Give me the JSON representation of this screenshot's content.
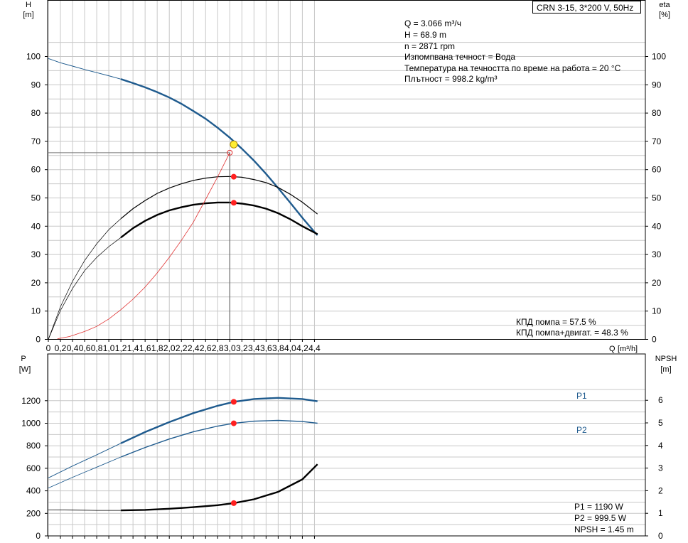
{
  "title_box": "CRN 3-15, 3*200 V, 50Hz",
  "top_chart": {
    "left_axis": {
      "symbol": "H",
      "unit": "[m]"
    },
    "right_axis": {
      "symbol": "eta",
      "unit": "[%]"
    },
    "x_axis": {
      "symbol": "Q",
      "unit": "[m³/h]"
    },
    "info_lines": [
      "Q = 3.066 m³/ч",
      "H = 68.9 m",
      "n = 2871 rpm",
      "Изпомпвана течност = Вода",
      "Температура на течността по време на работа = 20 °C",
      "Плътност = 998.2 kg/m³"
    ],
    "eff_lines": [
      "КПД помпа = 57.5 %",
      "КПД помпа+двигат. = 48.3 %"
    ]
  },
  "bottom_chart": {
    "left_axis": {
      "symbol": "P",
      "unit": "[W]"
    },
    "right_axis": {
      "symbol": "NPSH",
      "unit": "[m]"
    },
    "series_labels": {
      "p1": "P1",
      "p2": "P2"
    },
    "info_lines": [
      "P1 = 1190 W",
      "P2 = 999.5 W",
      "NPSH = 1.45 m"
    ]
  },
  "chart_data": [
    {
      "type": "line",
      "title": "CRN 3-15, 3*200 V, 50Hz",
      "xlabel": "Q [m³/h]",
      "ylabel": "H [m]",
      "ylabel_right": "eta [%]",
      "xlim": [
        0,
        4.6
      ],
      "ylim": [
        0,
        110
      ],
      "ylim_right": [
        0,
        110
      ],
      "x_ticks": [
        0,
        0.2,
        0.4,
        0.6,
        0.8,
        1.0,
        1.2,
        1.4,
        1.6,
        1.8,
        2.0,
        2.2,
        2.4,
        2.6,
        2.8,
        3.0,
        3.2,
        3.4,
        3.6,
        3.8,
        4.0,
        4.2,
        4.4
      ],
      "y_ticks": [
        0,
        10,
        20,
        30,
        40,
        50,
        60,
        70,
        80,
        90,
        100
      ],
      "grid": true,
      "operating_point": {
        "q": 3.066,
        "h": 68.9,
        "eta_pump": 57.5,
        "eta_total": 48.3
      },
      "system_curve_point": {
        "q": 3.0,
        "h": 66
      },
      "series": [
        {
          "key": "head",
          "color": "#1f5b8e",
          "x": [
            0,
            0.2,
            0.4,
            0.6,
            0.8,
            1.0,
            1.2,
            1.4,
            1.6,
            1.8,
            2.0,
            2.2,
            2.4,
            2.6,
            2.8,
            3.0,
            3.2,
            3.4,
            3.6,
            3.8,
            4.0,
            4.2,
            4.4,
            4.45
          ],
          "y": [
            99.3,
            97.8,
            96.6,
            95.4,
            94.3,
            93.2,
            92.0,
            90.6,
            89.1,
            87.4,
            85.5,
            83.3,
            80.7,
            78.0,
            74.8,
            71.3,
            67.4,
            63.2,
            58.5,
            53.5,
            48.3,
            43.0,
            38.0,
            36.8
          ]
        },
        {
          "key": "eta_pump",
          "color": "#000000",
          "x": [
            0,
            0.2,
            0.4,
            0.6,
            0.8,
            1.0,
            1.2,
            1.4,
            1.6,
            1.8,
            2.0,
            2.2,
            2.4,
            2.6,
            2.8,
            3.0,
            3.2,
            3.4,
            3.6,
            3.8,
            4.0,
            4.2,
            4.45
          ],
          "y": [
            0,
            11.5,
            20.5,
            27.9,
            33.8,
            38.8,
            42.7,
            46.2,
            49.1,
            51.6,
            53.5,
            55.0,
            56.2,
            57.0,
            57.5,
            57.6,
            57.3,
            56.5,
            55.4,
            53.7,
            51.3,
            48.5,
            44.3
          ]
        },
        {
          "key": "eta_total",
          "color": "#000000",
          "x": [
            0,
            0.2,
            0.4,
            0.6,
            0.8,
            1.0,
            1.2,
            1.4,
            1.6,
            1.8,
            2.0,
            2.2,
            2.4,
            2.6,
            2.8,
            3.0,
            3.2,
            3.4,
            3.6,
            3.8,
            4.0,
            4.2,
            4.45
          ],
          "y": [
            0,
            10.2,
            18.0,
            24.3,
            29.0,
            32.8,
            36.0,
            39.3,
            41.9,
            44.0,
            45.6,
            46.7,
            47.6,
            48.1,
            48.4,
            48.4,
            48.0,
            47.3,
            46.2,
            44.6,
            42.5,
            40.0,
            37.2
          ]
        },
        {
          "key": "system",
          "color": "#e03030",
          "x": [
            0.15,
            0.35,
            0.6,
            0.8,
            1.0,
            1.2,
            1.4,
            1.6,
            1.8,
            2.0,
            2.2,
            2.4,
            2.6,
            2.8,
            3.0
          ],
          "y": [
            0.2,
            1.0,
            2.8,
            4.6,
            7.2,
            10.5,
            14.2,
            18.5,
            23.5,
            29.0,
            35.0,
            41.5,
            49.5,
            57.5,
            66.0
          ]
        }
      ]
    },
    {
      "type": "line",
      "xlabel": "Q [m³/h]",
      "ylabel": "P [W]",
      "ylabel_right": "NPSH [m]",
      "xlim": [
        0,
        4.6
      ],
      "ylim": [
        0,
        1400
      ],
      "ylim_right": [
        0,
        7
      ],
      "y_ticks": [
        0,
        200,
        400,
        600,
        800,
        1000,
        1200
      ],
      "y_ticks_right": [
        0,
        1,
        2,
        3,
        4,
        5,
        6
      ],
      "grid": true,
      "operating_point": {
        "q": 3.066,
        "p1": 1190,
        "p2": 999.5,
        "npsh": 1.45
      },
      "series": [
        {
          "key": "p1",
          "name": "P1",
          "color": "#1f5b8e",
          "x": [
            0,
            0.4,
            0.8,
            1.2,
            1.6,
            2.0,
            2.4,
            2.8,
            3.066,
            3.4,
            3.8,
            4.2,
            4.45
          ],
          "y": [
            515,
            620,
            720,
            822,
            922,
            1010,
            1090,
            1155,
            1190,
            1215,
            1225,
            1215,
            1195
          ]
        },
        {
          "key": "p2",
          "name": "P2",
          "color": "#1f5b8e",
          "x": [
            0,
            0.4,
            0.8,
            1.2,
            1.6,
            2.0,
            2.4,
            2.8,
            3.066,
            3.4,
            3.8,
            4.2,
            4.45
          ],
          "y": [
            425,
            520,
            610,
            700,
            785,
            860,
            925,
            975,
            999.5,
            1018,
            1025,
            1015,
            1000
          ]
        },
        {
          "key": "npsh",
          "color": "#000000",
          "x": [
            0,
            0.4,
            0.8,
            1.2,
            1.6,
            2.0,
            2.4,
            2.8,
            3.066,
            3.4,
            3.8,
            4.2,
            4.45
          ],
          "y": [
            1.15,
            1.14,
            1.13,
            1.13,
            1.15,
            1.2,
            1.27,
            1.36,
            1.45,
            1.62,
            1.95,
            2.5,
            3.17
          ]
        }
      ]
    }
  ]
}
